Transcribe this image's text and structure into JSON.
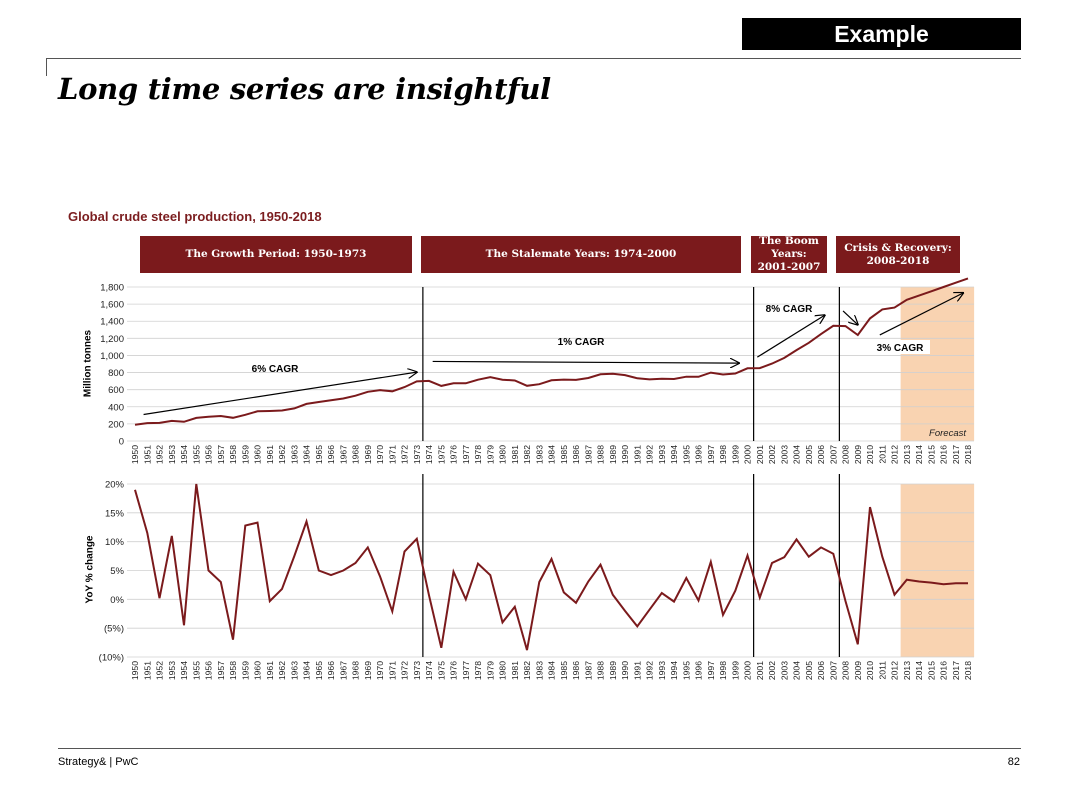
{
  "header": {
    "example_label": "Example",
    "title": "Long time series are insightful"
  },
  "chart_data": {
    "title": "Global crude steel production, 1950-2018",
    "periods": [
      {
        "label": "The Growth Period: 1950-1973"
      },
      {
        "label": "The Stalemate Years: 1974-2000"
      },
      {
        "label": "The Boom Years: 2001-2007"
      },
      {
        "label": "Crisis & Recovery: 2008-2018"
      }
    ],
    "forecast_label": "Forecast",
    "forecast_start_year": 2013,
    "years": [
      1950,
      1951,
      1952,
      1953,
      1954,
      1955,
      1956,
      1957,
      1958,
      1959,
      1960,
      1961,
      1962,
      1963,
      1964,
      1965,
      1966,
      1967,
      1968,
      1969,
      1970,
      1971,
      1972,
      1973,
      1974,
      1975,
      1976,
      1977,
      1978,
      1979,
      1980,
      1981,
      1982,
      1983,
      1984,
      1985,
      1986,
      1987,
      1988,
      1989,
      1990,
      1991,
      1992,
      1993,
      1994,
      1995,
      1996,
      1997,
      1998,
      1999,
      2000,
      2001,
      2002,
      2003,
      2004,
      2005,
      2006,
      2007,
      2008,
      2009,
      2010,
      2011,
      2012,
      2013,
      2014,
      2015,
      2016,
      2017,
      2018
    ],
    "period_boundaries": [
      1973,
      2000,
      2007
    ],
    "charts": [
      {
        "type": "line",
        "ylabel": "Million tonnes",
        "ylim": [
          0,
          1800
        ],
        "yticks": [
          "0",
          "200",
          "400",
          "600",
          "800",
          "1,000",
          "1,200",
          "1,400",
          "1,600",
          "1,800"
        ],
        "ytick_values": [
          0,
          200,
          400,
          600,
          800,
          1000,
          1200,
          1400,
          1600,
          1800
        ],
        "series": [
          {
            "name": "Crude steel production",
            "values": [
              189,
              209,
              212,
              235,
              225,
              270,
              283,
              292,
              271,
              306,
              347,
              351,
              357,
              381,
              434,
              456,
              476,
              497,
              529,
              575,
              595,
              581,
              630,
              697,
              703,
              644,
              675,
              675,
              717,
              746,
              716,
              707,
              645,
              664,
              710,
              718,
              714,
              736,
              780,
              786,
              770,
              733,
              720,
              728,
              725,
              752,
              750,
              799,
              777,
              789,
              850,
              852,
              905,
              971,
              1063,
              1148,
              1250,
              1347,
              1343,
              1239,
              1433,
              1538,
              1559,
              1650,
              1700,
              1750,
              1800,
              1850,
              1900
            ]
          }
        ],
        "annotations": [
          {
            "text": "6% CAGR",
            "from_year": 1950.7,
            "from_value": 310,
            "to_year": 1973,
            "to_value": 805
          },
          {
            "text": "1% CAGR",
            "from_year": 1974.3,
            "from_value": 930,
            "to_year": 1999.3,
            "to_value": 910
          },
          {
            "text": "8% CAGR",
            "from_year": 2000.8,
            "from_value": 980,
            "to_year": 2006.3,
            "to_value": 1470
          },
          {
            "text": "",
            "from_year": 2007.8,
            "from_value": 1520,
            "to_year": 2009,
            "to_value": 1360
          },
          {
            "text": "3% CAGR",
            "from_year": 2010.8,
            "from_value": 1240,
            "to_year": 2017.6,
            "to_value": 1730
          }
        ]
      },
      {
        "type": "line",
        "ylabel": "YoY % change",
        "ylim": [
          -10,
          20
        ],
        "yticks": [
          "(10%)",
          "(5%)",
          "0%",
          "5%",
          "10%",
          "15%",
          "20%"
        ],
        "ytick_values": [
          -10,
          -5,
          0,
          5,
          10,
          15,
          20
        ],
        "series": [
          {
            "name": "YoY % change",
            "values": [
              19,
              11.5,
              0.2,
              11,
              -4.5,
              20,
              5,
              3,
              -7,
              12.8,
              13.3,
              -0.3,
              1.8,
              7.5,
              13.5,
              5,
              4.2,
              5,
              6.3,
              9,
              4,
              -2.1,
              8.3,
              10.5,
              0.7,
              -8.4,
              4.8,
              0,
              6.2,
              4.2,
              -4,
              -1.3,
              -8.8,
              3,
              7,
              1.2,
              -0.6,
              3.1,
              6,
              0.8,
              -2,
              -4.7,
              -1.8,
              1.1,
              -0.4,
              3.7,
              -0.2,
              6.5,
              -2.7,
              1.5,
              7.6,
              0.3,
              6.3,
              7.3,
              10.4,
              7.4,
              9,
              7.9,
              -0.3,
              -7.8,
              16,
              7.4,
              0.8,
              3.4,
              3.1,
              2.9,
              2.6,
              2.8,
              2.8
            ]
          }
        ]
      }
    ]
  },
  "footer": {
    "source": "Strategy& | PwC",
    "page_number": "82"
  }
}
